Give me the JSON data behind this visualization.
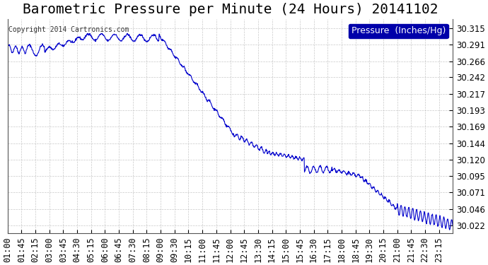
{
  "title": "Barometric Pressure per Minute (24 Hours) 20141102",
  "copyright": "Copyright 2014 Cartronics.com",
  "legend_label": "Pressure  (Inches/Hg)",
  "line_color": "#0000cc",
  "background_color": "#ffffff",
  "grid_color": "#bbbbbb",
  "yticks": [
    30.022,
    30.046,
    30.071,
    30.095,
    30.12,
    30.144,
    30.169,
    30.193,
    30.217,
    30.242,
    30.266,
    30.291,
    30.315
  ],
  "ylim": [
    30.01,
    30.328
  ],
  "xtick_labels": [
    "01:00",
    "01:45",
    "02:15",
    "03:00",
    "03:45",
    "04:30",
    "05:15",
    "06:00",
    "06:45",
    "07:30",
    "08:15",
    "09:00",
    "09:30",
    "10:15",
    "11:00",
    "11:45",
    "12:00",
    "12:45",
    "13:30",
    "14:15",
    "15:00",
    "15:45",
    "16:30",
    "17:15",
    "18:00",
    "18:45",
    "19:30",
    "20:15",
    "21:00",
    "21:45",
    "22:30",
    "23:15"
  ],
  "title_fontsize": 14,
  "tick_fontsize": 8.5,
  "legend_fontsize": 9
}
